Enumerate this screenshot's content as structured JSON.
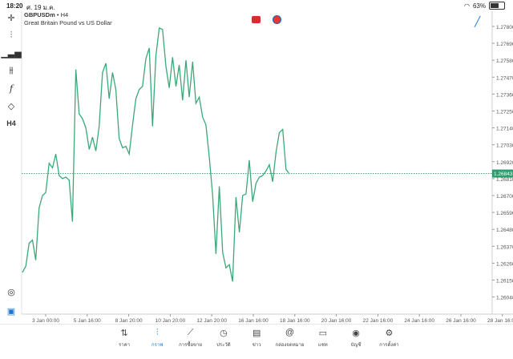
{
  "status_bar": {
    "time": "18:20",
    "date": "ศ. 19 ม.ค.",
    "battery": "63%",
    "battery_level": 0.63
  },
  "header": {
    "symbol": "GBPUSDm",
    "timeframe": "H4",
    "description": "Great Britain Pound vs US Dollar"
  },
  "sidebar": {
    "timeframe_label": "H4"
  },
  "colors": {
    "line": "#3aa97a",
    "price_line": "#2e9d6e",
    "price_tag": "#2e9d6e",
    "grid": "#e5e5e5",
    "accent": "#1976d2"
  },
  "chart_data": {
    "type": "line",
    "y_ticks": [
      "1.27800",
      "1.27690",
      "1.27580",
      "1.27470",
      "1.27360",
      "1.27250",
      "1.27140",
      "1.27030",
      "1.26920",
      "1.26810",
      "1.26700",
      "1.26590",
      "1.26480",
      "1.26370",
      "1.26260",
      "1.26150",
      "1.26040"
    ],
    "ylim": [
      1.2595,
      1.2786
    ],
    "x_ticks": [
      "3 Jan 00:00",
      "5 Jan 16:00",
      "8 Jan 20:00",
      "10 Jan 20:00",
      "12 Jan 20:00",
      "16 Jan 16:00",
      "18 Jan 16:00",
      "20 Jan 16:00",
      "22 Jan 16:00",
      "24 Jan 16:00",
      "26 Jan 16:00",
      "28 Jan 16:00"
    ],
    "current_price": "1.26843",
    "current_value": 1.26843,
    "series": [
      {
        "values": [
          1.262,
          1.2624,
          1.2639,
          1.2641,
          1.2628,
          1.2662,
          1.267,
          1.2672,
          1.2691,
          1.2688,
          1.2697,
          1.2683,
          1.2681,
          1.2682,
          1.268,
          1.2653,
          1.2752,
          1.2723,
          1.272,
          1.2714,
          1.27,
          1.2708,
          1.2699,
          1.2715,
          1.275,
          1.2756,
          1.2733,
          1.275,
          1.2739,
          1.2707,
          1.2701,
          1.2702,
          1.2697,
          1.2716,
          1.2733,
          1.2739,
          1.2741,
          1.2759,
          1.2766,
          1.2715,
          1.2761,
          1.2779,
          1.2778,
          1.2754,
          1.274,
          1.276,
          1.2741,
          1.2755,
          1.2732,
          1.2758,
          1.2734,
          1.2757,
          1.273,
          1.2734,
          1.2721,
          1.2716,
          1.2695,
          1.267,
          1.2632,
          1.2676,
          1.2633,
          1.2623,
          1.2625,
          1.2614,
          1.2669,
          1.2646,
          1.267,
          1.2671,
          1.2693,
          1.2666,
          1.2678,
          1.2682,
          1.2683,
          1.2686,
          1.269,
          1.2679,
          1.2698,
          1.2711,
          1.2713,
          1.2687,
          1.2684
        ]
      }
    ]
  },
  "tabs": [
    {
      "label": "ราคา",
      "icon": "quotes-icon",
      "active": false
    },
    {
      "label": "กราฟ",
      "icon": "chart-icon",
      "active": true
    },
    {
      "label": "การซื้อขาย",
      "icon": "trade-icon",
      "active": false
    },
    {
      "label": "ประวัติ",
      "icon": "history-icon",
      "active": false
    },
    {
      "label": "ข่าว",
      "icon": "news-icon",
      "active": false
    },
    {
      "label": "กล่องจดหมาย",
      "icon": "mailbox-icon",
      "active": false
    },
    {
      "label": "แชท",
      "icon": "chat-icon",
      "active": false
    },
    {
      "label": "บัญชี",
      "icon": "account-icon",
      "active": false
    },
    {
      "label": "การตั้งค่า",
      "icon": "settings-icon",
      "active": false
    }
  ]
}
